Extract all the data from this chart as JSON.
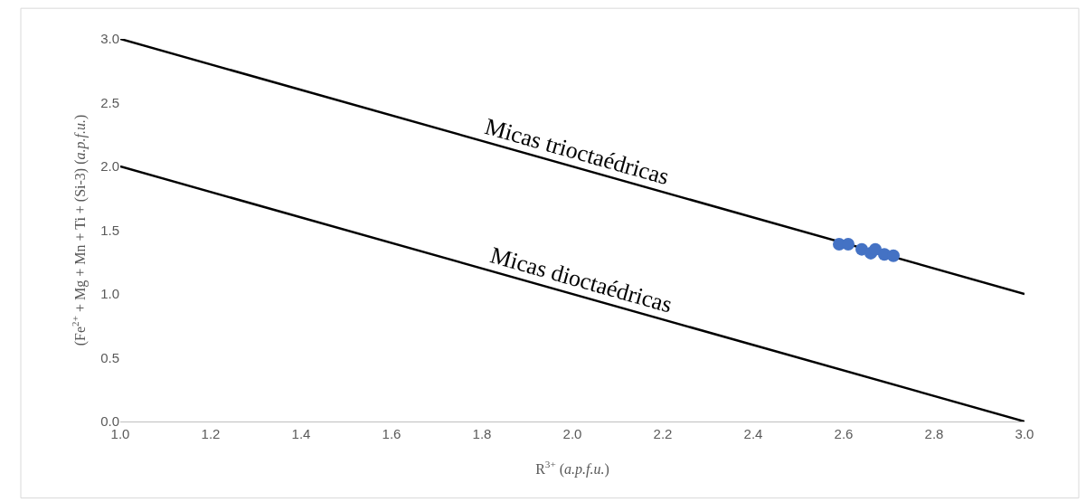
{
  "chart_data": {
    "type": "scatter",
    "xlabel": "R$^{3+}$ (a.p.f.u.)",
    "ylabel": "(Fe$^{2+}$ + Mg + Mn + Ti + (Si-3) (a.p.f.u.)",
    "xlim": [
      1.0,
      3.0
    ],
    "xticks": [
      {
        "value": 1.0,
        "label": "1.0"
      },
      {
        "value": 1.2,
        "label": "1.2"
      },
      {
        "value": 1.4,
        "label": "1.4"
      },
      {
        "value": 1.6,
        "label": "1.6"
      },
      {
        "value": 1.8,
        "label": "1.8"
      },
      {
        "value": 2.0,
        "label": "2.0"
      },
      {
        "value": 2.2,
        "label": "2.2"
      },
      {
        "value": 2.4,
        "label": "2.4"
      },
      {
        "value": 2.6,
        "label": "2.6"
      },
      {
        "value": 2.8,
        "label": "2.8"
      },
      {
        "value": 3.0,
        "label": "3.0"
      }
    ],
    "ylim": [
      0.0,
      3.0
    ],
    "yticks": [
      {
        "value": 0.0,
        "label": "0.0"
      },
      {
        "value": 0.5,
        "label": "0.5"
      },
      {
        "value": 1.0,
        "label": "1.0"
      },
      {
        "value": 1.5,
        "label": "1.5"
      },
      {
        "value": 2.0,
        "label": "2.0"
      },
      {
        "value": 2.5,
        "label": "2.5"
      },
      {
        "value": 3.0,
        "label": "3.0"
      }
    ],
    "marker": "circle",
    "series": [
      {
        "type": "line",
        "color": "#000000",
        "x": [
          1.0,
          3.0
        ],
        "values": [
          3.0,
          1.0
        ],
        "marker": "none"
      },
      {
        "type": "line",
        "color": "#000000",
        "x": [
          1.0,
          3.0
        ],
        "values": [
          2.0,
          0.0
        ],
        "marker": "none"
      },
      {
        "type": "scatter",
        "color": "#4472c4",
        "x": [
          2.59,
          2.61,
          2.64,
          2.66,
          2.67,
          2.68,
          2.69,
          2.71
        ],
        "values": [
          1.39,
          1.39,
          1.35,
          1.32,
          1.35,
          null,
          1.31,
          1.3
        ]
      }
    ],
    "annotations": [
      {
        "text": "Micas trioctaédricas",
        "x": 2.02,
        "y": 1.98
      },
      {
        "text": "Micas dioctaédricas",
        "x": 2.03,
        "y": 0.97
      }
    ]
  }
}
